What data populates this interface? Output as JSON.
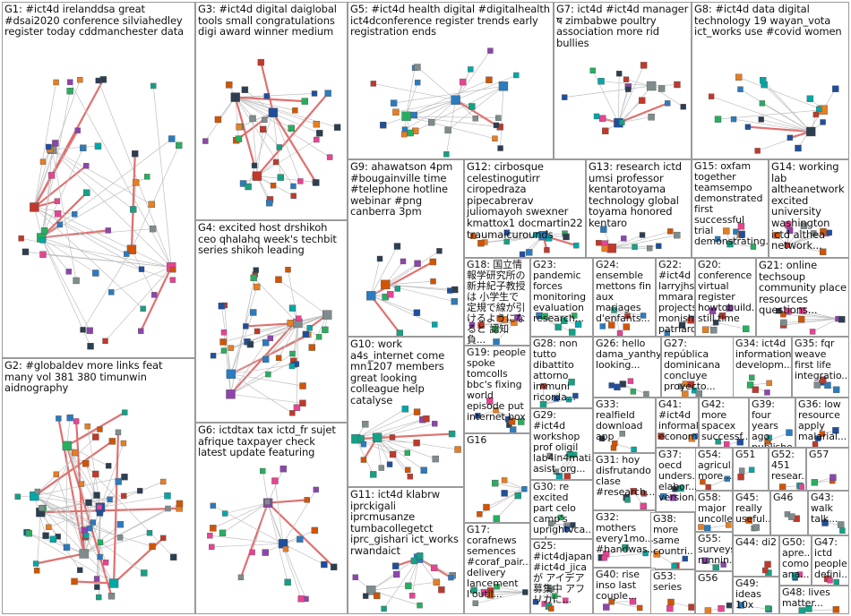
{
  "colors": {
    "edge": "#bfbfbf",
    "edge_strong": "#e07070",
    "node_palette": [
      "#1f4e9e",
      "#2b7bbf",
      "#c0392b",
      "#27ae60",
      "#8e44ad",
      "#e67e22",
      "#16a085",
      "#7f8c8d",
      "#d35400",
      "#2c3e50",
      "#e84393",
      "#00a8a8"
    ]
  },
  "groups": [
    {
      "id": "G1",
      "label": "G1: #ict4d irelanddsa great #dsai2020 conference silviahedley register today cddmanchester data"
    },
    {
      "id": "G2",
      "label": "G2: #globaldev more links feat many vol 381 380 timunwin aidnography"
    },
    {
      "id": "G3",
      "label": "G3: #ict4d digital daiglobal tools small congratulations digi award winner medium"
    },
    {
      "id": "G4",
      "label": "G4: excited host drshikoh ceo qhalahq week's techbit series shikoh leading"
    },
    {
      "id": "G5",
      "label": "G5: #ict4d health digital #digitalhealth ict4dconference register trends early registration ends"
    },
    {
      "id": "G6",
      "label": "G6: ictdtax tax ictd_fr sujet afrique taxpayer check latest update featuring"
    },
    {
      "id": "G7",
      "label": "G7: ict4d #ict4d manager ष zimbabwe poultry association more rid bullies"
    },
    {
      "id": "G8",
      "label": "G8: #ict4d data digital technology 19 wayan_vota ict_works use #covid women"
    },
    {
      "id": "G9",
      "label": "G9: ahawatson 4pm #bougainville time #telephone hotline webinar #png canberra 3pm"
    },
    {
      "id": "G10",
      "label": "G10: work a4s_internet come mn1207 members great looking colleague help catalyse"
    },
    {
      "id": "G11",
      "label": "G11: ict4d klabrw iprckigali iprcmusanze tumbacollegetct iprc_gishari ict_works rwandaict"
    },
    {
      "id": "G12",
      "label": "G12: cirbosque celestinogutirr ciropedraza pipecabrerav juliomayoh swexner kmattox1 docmartin22 traumaicurounds"
    },
    {
      "id": "G13",
      "label": "G13: research ictd umsi professor kentarotoyama technology global toyama honored kentaro"
    },
    {
      "id": "G14",
      "label": "G14: working lab altheanetwork excited university washington ictd althea network..."
    },
    {
      "id": "G15",
      "label": "G15: oxfam together teamsempo demonstrated first successful trial demonstrating..."
    },
    {
      "id": "G16",
      "label": "G16"
    },
    {
      "id": "G17",
      "label": "G17: corafnews semences #coraf_pair... delivery lancement l'outil..."
    },
    {
      "id": "G18",
      "label": "G18: 国立情報学研究所の新井紀子教授は 小学生で定規で線が引けるようになると 認知負..."
    },
    {
      "id": "G19",
      "label": "G19: people spoke tomcolls bbc's fixing world episode put internet box"
    },
    {
      "id": "G20",
      "label": "G20: conference virtual register howtobuild... still time"
    },
    {
      "id": "G21",
      "label": "G21: online techsoup community place resources questions..."
    },
    {
      "id": "G22",
      "label": "G22: #ict4d larryjhs mmarais projects monishabis... patriarchy"
    },
    {
      "id": "G23",
      "label": "G23: pandemic forces monitoring evaluation research..."
    },
    {
      "id": "G24",
      "label": "G24: ensemble mettons fin aux mariages d'enfants..."
    },
    {
      "id": "G25",
      "label": "G25: #ict4djapan #ict4d_jica が アイデア募集中 アフリカに..."
    },
    {
      "id": "G26",
      "label": "G26: hello dama_yanthy looking..."
    },
    {
      "id": "G27",
      "label": "G27: república dominicana concluye proyecto..."
    },
    {
      "id": "G28",
      "label": "G28: non tutto dibattito attorno immuni ricorda..."
    },
    {
      "id": "G29",
      "label": "G29: #ict4d workshop prof oligil lab4in4mati... asist_org..."
    },
    {
      "id": "G30",
      "label": "G30: re excited part celo camp's uprightvca... celoorg top..."
    },
    {
      "id": "G31",
      "label": "G31: hoy disfrutando clase #research..."
    },
    {
      "id": "G32",
      "label": "G32: mothers every1mo... #handwas..."
    },
    {
      "id": "G33",
      "label": "G33: realfield download app"
    },
    {
      "id": "G34",
      "label": "G34: ict4d information developm..."
    },
    {
      "id": "G35",
      "label": "G35: fqr weave first life integratio..."
    },
    {
      "id": "G36",
      "label": "G36: low resource apply malarial..."
    },
    {
      "id": "G37",
      "label": "G37: oecd unders... elabor... version..."
    },
    {
      "id": "G38",
      "label": "G38: more same countri..."
    },
    {
      "id": "G39",
      "label": "G39: four years ago publishe..."
    },
    {
      "id": "G40",
      "label": "G40: rise inso last couple..."
    },
    {
      "id": "G41",
      "label": "G41: #ict4d informal economy"
    },
    {
      "id": "G42",
      "label": "G42: more spacex successf..."
    },
    {
      "id": "G43",
      "label": "G43: walk talk..."
    },
    {
      "id": "G44",
      "label": "G44: di2"
    },
    {
      "id": "G45",
      "label": "G45: really useful..."
    },
    {
      "id": "G46",
      "label": "G46"
    },
    {
      "id": "G47",
      "label": "G47: ictd people defini..."
    },
    {
      "id": "G48",
      "label": "G48: lives matter..."
    },
    {
      "id": "G49",
      "label": "G49: ideas 10x"
    },
    {
      "id": "G50",
      "label": "G50: apre... como ana..."
    },
    {
      "id": "G51",
      "label": "G51"
    },
    {
      "id": "G52",
      "label": "G52: 451 resear..."
    },
    {
      "id": "G53",
      "label": "G53: series"
    },
    {
      "id": "G54",
      "label": "G54: agricul... more..."
    },
    {
      "id": "G55",
      "label": "G55: surveys runnin..."
    },
    {
      "id": "G56",
      "label": "G56"
    },
    {
      "id": "G57",
      "label": "G57"
    },
    {
      "id": "G58",
      "label": "G58: major uncolle..."
    }
  ]
}
